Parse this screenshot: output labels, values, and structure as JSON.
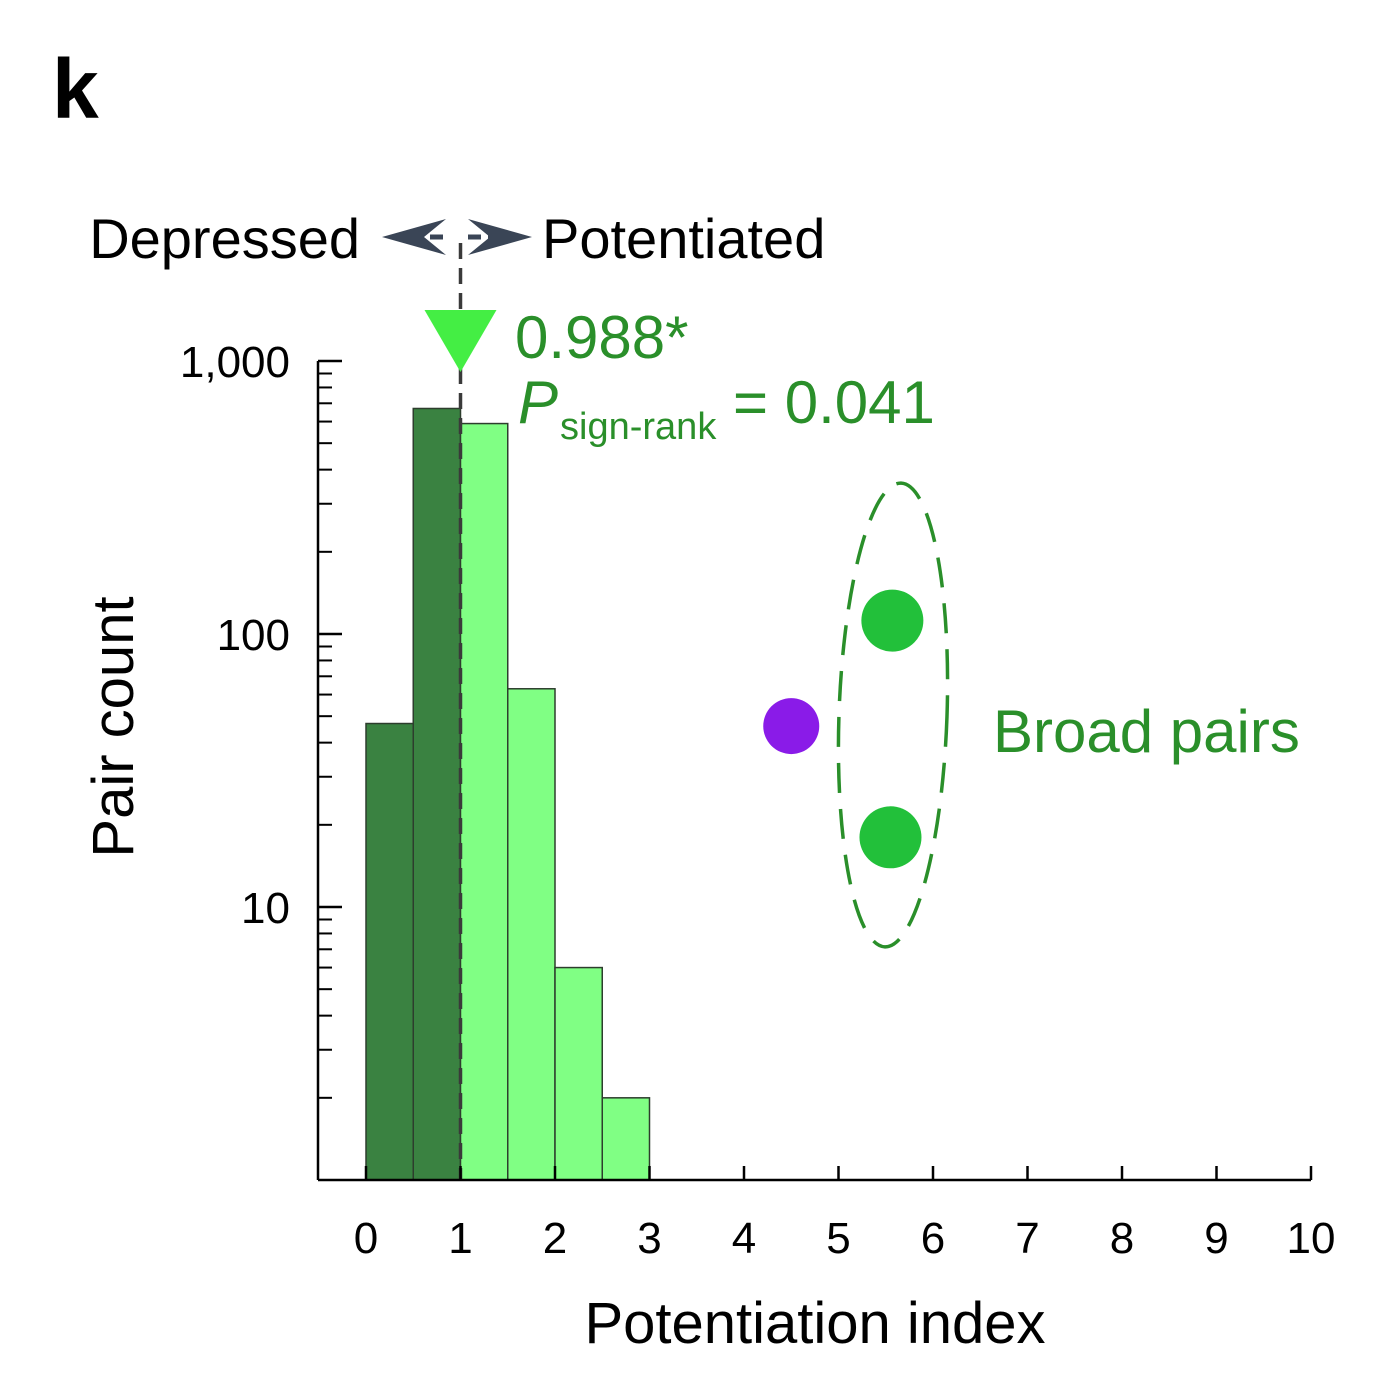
{
  "panel_label": "k",
  "direction": {
    "left": "Depressed",
    "right": "Potentiated"
  },
  "annotation": {
    "median": "0.988*",
    "p_symbol": "P",
    "p_subscript": "sign-rank",
    "p_rest": " = 0.041",
    "group_label": "Broad pairs"
  },
  "colors": {
    "depressed_bar": "#3a8241",
    "potentiated_bar": "#80ff84",
    "marker": "#44ee44",
    "annotation": "#2a8f2a",
    "broad_point": "#22c03a",
    "outlier_point": "#8a1be8",
    "arrow": "#3a4556"
  },
  "chart_data": {
    "type": "bar",
    "title": "",
    "xlabel": "Potentiation index",
    "ylabel": "Pair count",
    "xlim": [
      -0.5,
      10
    ],
    "ylim": [
      1,
      1000
    ],
    "y_scale": "log",
    "x_ticks": [
      0,
      1,
      2,
      3,
      4,
      5,
      6,
      7,
      8,
      9,
      10
    ],
    "y_tick_labels": [
      "10",
      "100",
      "1,000"
    ],
    "y_tick_values": [
      10,
      100,
      1000
    ],
    "threshold_x": 1,
    "median_marker_x": 1,
    "bins": [
      {
        "start": 0,
        "end": 0.5,
        "count": 47,
        "group": "depressed"
      },
      {
        "start": 0.5,
        "end": 1,
        "count": 670,
        "group": "depressed"
      },
      {
        "start": 1,
        "end": 1.5,
        "count": 590,
        "group": "potentiated"
      },
      {
        "start": 1.5,
        "end": 2,
        "count": 63,
        "group": "potentiated"
      },
      {
        "start": 2,
        "end": 2.5,
        "count": 6,
        "group": "potentiated"
      },
      {
        "start": 2.5,
        "end": 3,
        "count": 2,
        "group": "potentiated"
      }
    ],
    "points": [
      {
        "x": 4.5,
        "y": 46,
        "group": "outlier"
      },
      {
        "x": 5.57,
        "y": 112,
        "group": "broad"
      },
      {
        "x": 5.55,
        "y": 18,
        "group": "broad"
      }
    ]
  }
}
